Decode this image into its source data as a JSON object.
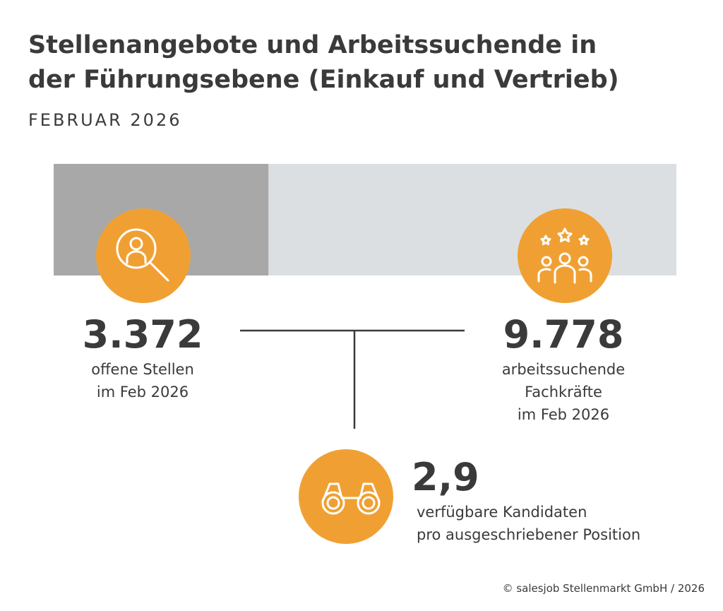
{
  "header": {
    "title_lines": [
      "Stellenangebote und Arbeitssuchende in",
      "der Führungsebene (Einkauf und Vertrieb)"
    ],
    "subtitle": "FEBRUAR 2026"
  },
  "stats": {
    "open": {
      "value": 3372,
      "label": "3.372",
      "caption": [
        "offene Stellen",
        "im Feb 2026"
      ]
    },
    "seekers": {
      "value": 9778,
      "label": "9.778",
      "caption": [
        "arbeitssuchende",
        "Fachkräfte",
        "im Feb 2026"
      ]
    },
    "ratio": {
      "label": "2,9",
      "caption": [
        "verfügbare Kandidaten",
        "pro ausgeschriebener Position"
      ]
    }
  },
  "footer": "© salesjob Stellenmarkt GmbH / 2026"
}
